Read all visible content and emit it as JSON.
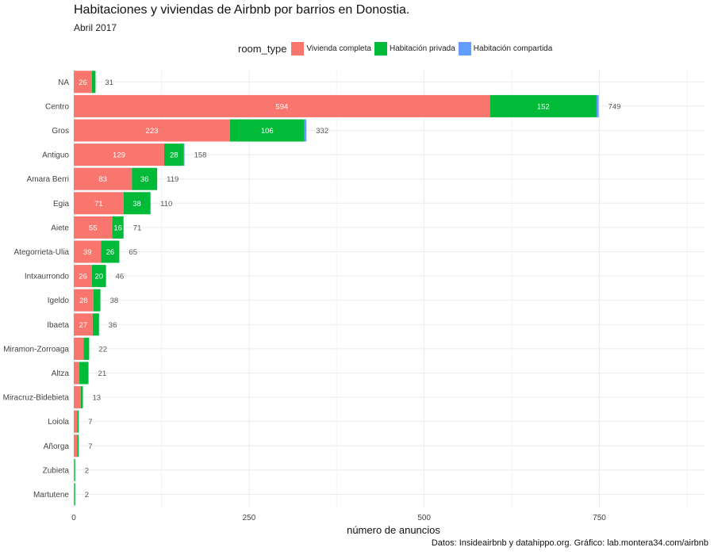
{
  "chart_data": {
    "type": "bar",
    "orientation": "horizontal",
    "stacked": true,
    "title": "Habitaciones y viviendas de Airbnb por barrios en Donostia.",
    "subtitle": "Abril 2017",
    "xlabel": "número de anuncios",
    "ylabel": "",
    "caption": "Datos: Insideairbnb y datahippo.org. Gráfico: lab.montera34.com/airbnb",
    "xlim": [
      0,
      900
    ],
    "xticks": [
      0,
      250,
      500,
      750
    ],
    "grid": true,
    "legend_title": "room_type",
    "legend_position": "top",
    "categories": [
      "NA",
      "Centro",
      "Gros",
      "Antiguo",
      "Amara Berri",
      "Egia",
      "Aiete",
      "Ategorrieta-Ulia",
      "Intxaurrondo",
      "Igeldo",
      "Ibaeta",
      "Miramon-Zorroaga",
      "Altza",
      "Miracruz-Bidebieta",
      "Loiola",
      "Añorga",
      "Zubieta",
      "Martutene"
    ],
    "series": [
      {
        "name": "Vivienda completa",
        "color": "#F8766D",
        "values": [
          26,
          594,
          223,
          129,
          83,
          71,
          55,
          39,
          26,
          28,
          27,
          14,
          8,
          10,
          5,
          5,
          1,
          1
        ],
        "labels": [
          "26",
          "594",
          "223",
          "129",
          "83",
          "71",
          "55",
          "39",
          "26",
          "28",
          "27",
          "",
          "",
          "",
          "",
          "",
          "",
          ""
        ]
      },
      {
        "name": "Habitación privada",
        "color": "#00BA38",
        "values": [
          5,
          152,
          106,
          28,
          36,
          38,
          16,
          26,
          20,
          10,
          9,
          8,
          13,
          3,
          2,
          2,
          1,
          1
        ],
        "labels": [
          "",
          "152",
          "106",
          "28",
          "36",
          "38",
          "16",
          "26",
          "20",
          "",
          "",
          "",
          "",
          "",
          "",
          "",
          "",
          ""
        ]
      },
      {
        "name": "Habitación compartida",
        "color": "#619CFF",
        "values": [
          0,
          3,
          3,
          1,
          0,
          1,
          0,
          0,
          0,
          0,
          0,
          0,
          0,
          0,
          0,
          0,
          0,
          0
        ],
        "labels": [
          "",
          "",
          "",
          "",
          "",
          "",
          "",
          "",
          "",
          "",
          "",
          "",
          "",
          "",
          "",
          "",
          "",
          ""
        ]
      }
    ],
    "totals": [
      31,
      749,
      332,
      158,
      119,
      110,
      71,
      65,
      46,
      38,
      36,
      22,
      21,
      13,
      7,
      7,
      2,
      2
    ]
  }
}
